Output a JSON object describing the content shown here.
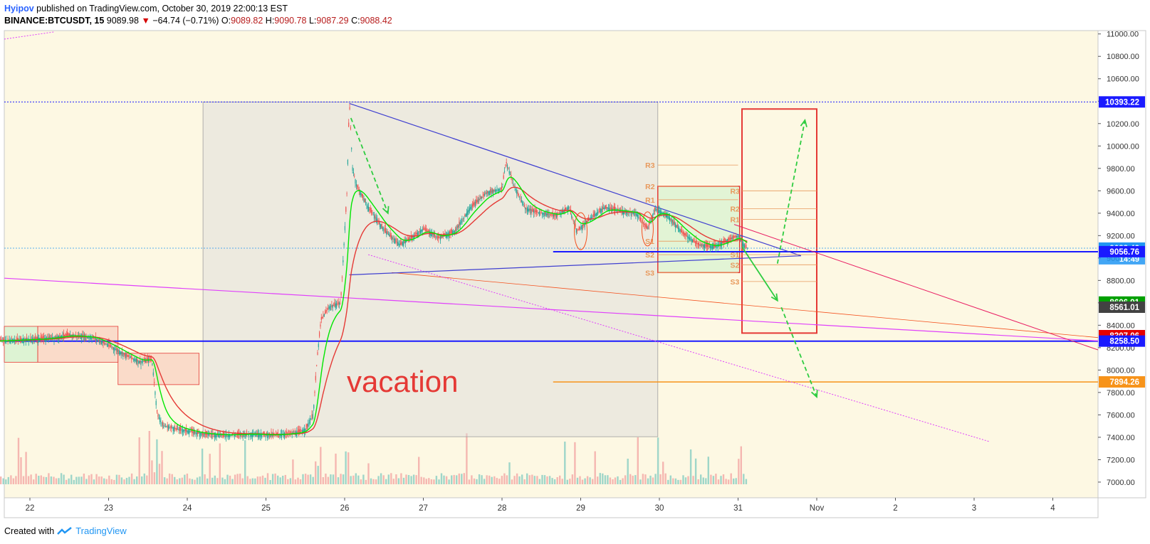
{
  "header": {
    "author": "Hyipov",
    "published": "published on TradingView.com, October 30, 2019 22:00:13 EST",
    "symbol": "BINANCE:BTCUSDT, 15",
    "last": "9089.98",
    "change": "−64.74 (−0.71%)",
    "o_label": "O:",
    "o": "9089.82",
    "h_label": "H:",
    "h": "9090.78",
    "l_label": "L:",
    "l": "9087.29",
    "c_label": "C:",
    "c": "9088.42"
  },
  "footer": {
    "created": "Created with",
    "brand": "TradingView"
  },
  "colors": {
    "background": "#fdf8e3",
    "up": "#26a69a",
    "down": "#ef5350",
    "fast_ma": "#00e600",
    "slow_ma": "#e53935",
    "trend": "#3f3fd0",
    "box": "#e53935"
  },
  "chart_data": {
    "type": "candlestick",
    "title": "",
    "xlabel": "",
    "ylabel": "",
    "x_ticks": [
      "22",
      "23",
      "24",
      "25",
      "26",
      "27",
      "28",
      "29",
      "30",
      "31",
      "Nov",
      "2",
      "3",
      "4"
    ],
    "y_ticks": [
      7000,
      7200,
      7400,
      7600,
      7800,
      8000,
      8200,
      8400,
      8600,
      8800,
      9000,
      9200,
      9400,
      9600,
      9800,
      10000,
      10200,
      10400,
      10600,
      10800,
      11000
    ],
    "ylim": [
      6880,
      11080
    ],
    "xlim": [
      21.6,
      35.5
    ],
    "price_path": [
      [
        21.6,
        8260
      ],
      [
        21.9,
        8270
      ],
      [
        22.2,
        8280
      ],
      [
        22.5,
        8310
      ],
      [
        22.8,
        8290
      ],
      [
        23.0,
        8220
      ],
      [
        23.2,
        8140
      ],
      [
        23.4,
        8070
      ],
      [
        23.55,
        8100
      ],
      [
        23.62,
        7600
      ],
      [
        23.7,
        7500
      ],
      [
        23.9,
        7470
      ],
      [
        24.2,
        7430
      ],
      [
        24.5,
        7420
      ],
      [
        24.8,
        7430
      ],
      [
        25.1,
        7420
      ],
      [
        25.4,
        7440
      ],
      [
        25.5,
        7470
      ],
      [
        25.6,
        7600
      ],
      [
        25.65,
        8100
      ],
      [
        25.7,
        8450
      ],
      [
        25.8,
        8560
      ],
      [
        25.95,
        8600
      ],
      [
        26.03,
        9600
      ],
      [
        26.06,
        10393
      ],
      [
        26.1,
        9800
      ],
      [
        26.15,
        9650
      ],
      [
        26.3,
        9450
      ],
      [
        26.5,
        9250
      ],
      [
        26.7,
        9120
      ],
      [
        26.85,
        9180
      ],
      [
        27.0,
        9260
      ],
      [
        27.2,
        9180
      ],
      [
        27.4,
        9240
      ],
      [
        27.6,
        9450
      ],
      [
        27.8,
        9580
      ],
      [
        28.0,
        9620
      ],
      [
        28.05,
        9860
      ],
      [
        28.15,
        9650
      ],
      [
        28.3,
        9440
      ],
      [
        28.5,
        9400
      ],
      [
        28.7,
        9380
      ],
      [
        28.85,
        9450
      ],
      [
        28.95,
        9240
      ],
      [
        29.1,
        9340
      ],
      [
        29.3,
        9450
      ],
      [
        29.5,
        9420
      ],
      [
        29.7,
        9400
      ],
      [
        29.85,
        9260
      ],
      [
        29.95,
        9440
      ],
      [
        30.1,
        9380
      ],
      [
        30.3,
        9220
      ],
      [
        30.5,
        9120
      ],
      [
        30.7,
        9100
      ],
      [
        30.9,
        9170
      ],
      [
        31.0,
        9200
      ],
      [
        31.07,
        9120
      ],
      [
        31.12,
        9088
      ]
    ],
    "last_price": 9088.42,
    "countdown": "14:49",
    "price_labels": [
      {
        "value": "10393.22",
        "price": 10393.22,
        "color": "#1a1aff"
      },
      {
        "value": "9088.42",
        "price": 9088.42,
        "color": "#2196f3"
      },
      {
        "value": "9056.76",
        "price": 9056.76,
        "color": "#1a1aff"
      },
      {
        "value": "8606.91",
        "price": 8606.91,
        "color": "#00a000"
      },
      {
        "value": "8561.01",
        "price": 8561.01,
        "color": "#424242"
      },
      {
        "value": "8307.06",
        "price": 8307.06,
        "color": "#e50000"
      },
      {
        "value": "8258.50",
        "price": 8258.5,
        "color": "#1a1aff"
      },
      {
        "value": "7894.26",
        "price": 7894.26,
        "color": "#f7931a"
      }
    ],
    "pivots_box1": [
      {
        "label": "R3",
        "price": 9830
      },
      {
        "label": "R2",
        "price": 9640
      },
      {
        "label": "R1",
        "price": 9520
      },
      {
        "label": "S1",
        "price": 9150
      },
      {
        "label": "S2",
        "price": 9030
      },
      {
        "label": "S3",
        "price": 8870
      }
    ],
    "pivots_box2": [
      {
        "label": "R3",
        "price": 9600
      },
      {
        "label": "R2",
        "price": 9440
      },
      {
        "label": "R1",
        "price": 9345
      },
      {
        "label": "S1",
        "price": 9030
      },
      {
        "label": "S2",
        "price": 8940
      },
      {
        "label": "S3",
        "price": 8790
      }
    ],
    "annotation": "vacation"
  }
}
